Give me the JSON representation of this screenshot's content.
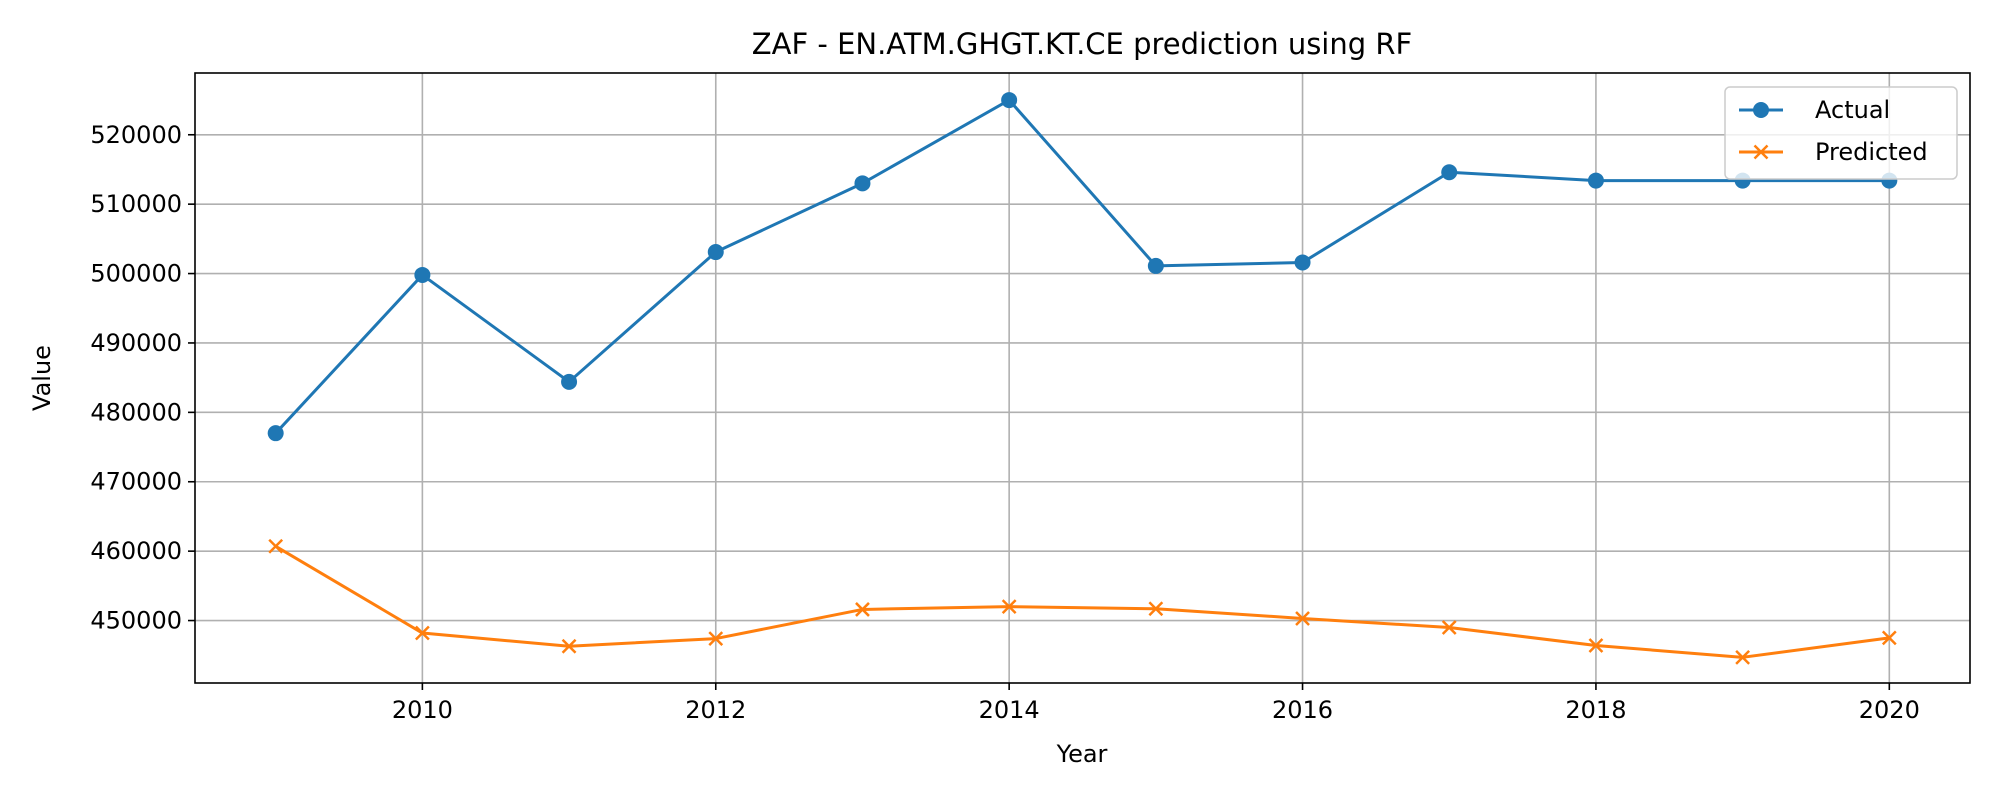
{
  "chart_data": {
    "type": "line",
    "title": "ZAF - EN.ATM.GHGT.KT.CE prediction using RF",
    "xlabel": "Year",
    "ylabel": "Value",
    "x": [
      2009,
      2010,
      2011,
      2012,
      2013,
      2014,
      2015,
      2016,
      2017,
      2018,
      2019,
      2020
    ],
    "series": [
      {
        "name": "Actual",
        "color": "#1f77b4",
        "marker": "circle",
        "values": [
          477000,
          499800,
          484400,
          503100,
          513000,
          525000,
          501100,
          501600,
          514600,
          513400,
          513400,
          513400
        ]
      },
      {
        "name": "Predicted",
        "color": "#ff7f0e",
        "marker": "x",
        "values": [
          460700,
          448200,
          446300,
          447400,
          451600,
          452000,
          451700,
          450300,
          449000,
          446400,
          444700,
          447500
        ]
      }
    ],
    "xlim": [
      2008.45,
      2020.55
    ],
    "ylim": [
      441000,
      528900
    ],
    "xticks": [
      2010,
      2012,
      2014,
      2016,
      2018,
      2020
    ],
    "yticks": [
      450000,
      460000,
      470000,
      480000,
      490000,
      500000,
      510000,
      520000
    ],
    "grid": true,
    "legend_position": "top-right"
  }
}
